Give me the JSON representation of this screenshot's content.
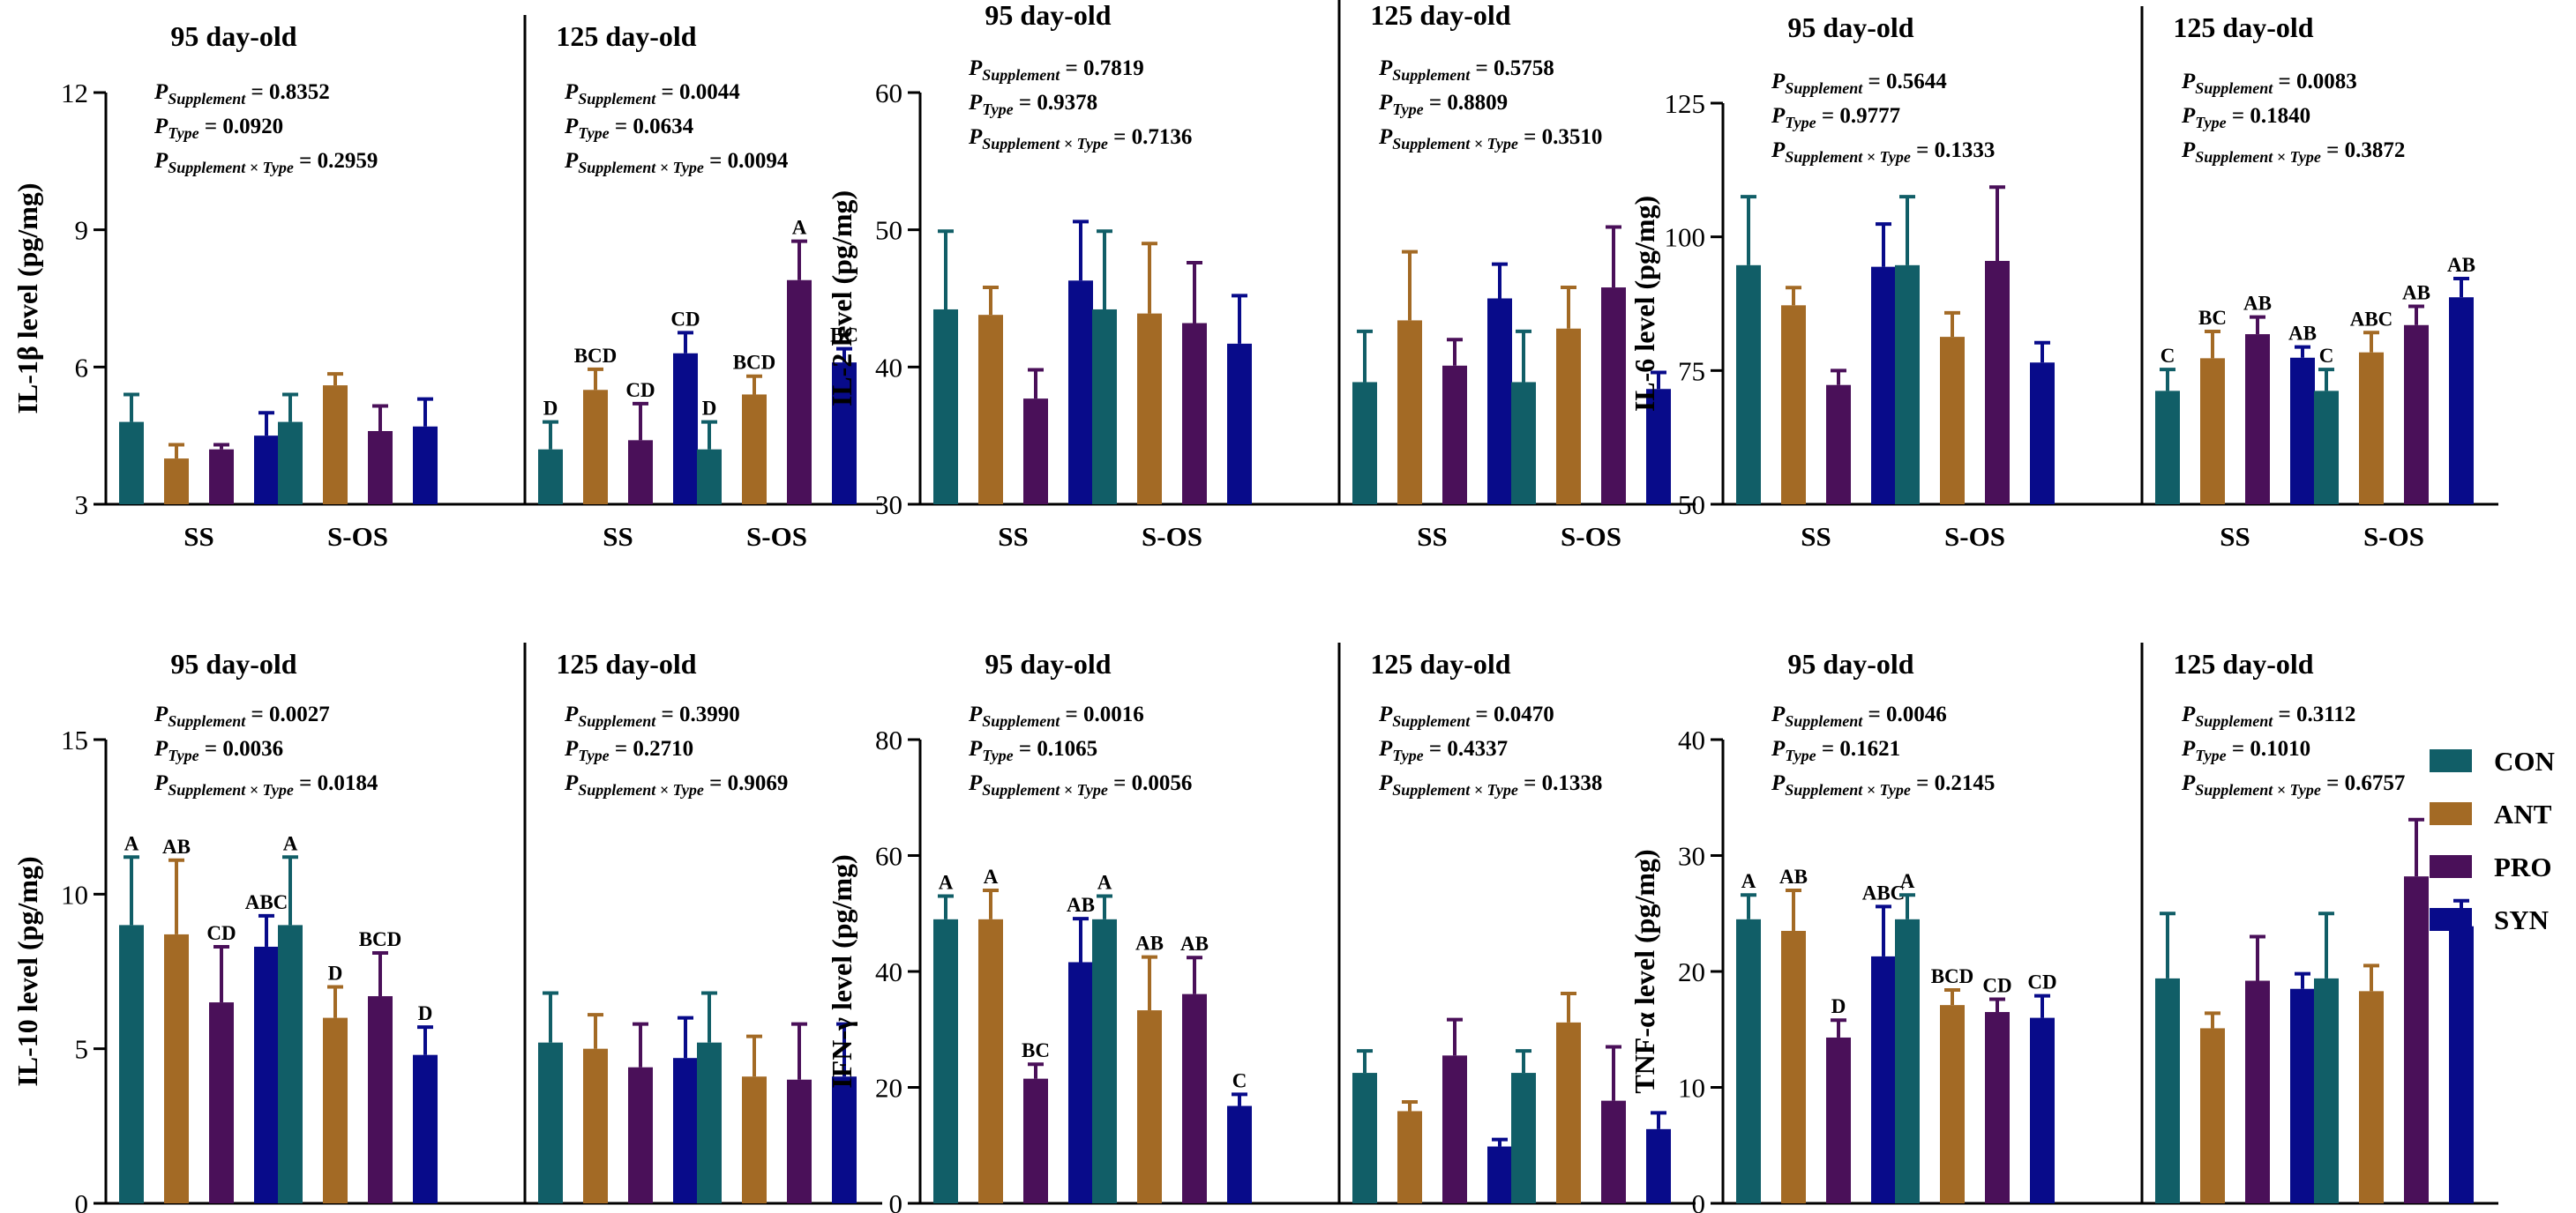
{
  "legend": {
    "items": [
      {
        "label": "CON",
        "color": "#115e67"
      },
      {
        "label": "ANT",
        "color": "#a36a25"
      },
      {
        "label": "PRO",
        "color": "#4a1059"
      },
      {
        "label": "SYN",
        "color": "#080b8a"
      }
    ]
  },
  "chart_data": [
    {
      "type": "bar",
      "title": "IL-1β",
      "ylabel": "IL-1β level (pg/mg)",
      "ylim": [
        3,
        12
      ],
      "yticks": [
        3,
        6,
        9,
        12
      ],
      "categories": [
        "SS",
        "S-OS",
        "SS",
        "S-OS"
      ],
      "groups": [
        "95 day-old",
        "125 day-old"
      ],
      "series": [
        {
          "name": "CON",
          "values": [
            4.8,
            4.8,
            4.2,
            4.2
          ],
          "err": [
            0.6,
            0.6,
            0.6,
            0.6
          ]
        },
        {
          "name": "ANT",
          "values": [
            4.0,
            5.6,
            5.5,
            5.4
          ],
          "err": [
            0.3,
            0.25,
            0.45,
            0.4
          ]
        },
        {
          "name": "PRO",
          "values": [
            4.2,
            4.6,
            4.4,
            7.9
          ],
          "err": [
            0.1,
            0.55,
            0.8,
            0.85
          ]
        },
        {
          "name": "SYN",
          "values": [
            4.5,
            4.7,
            6.3,
            6.1
          ],
          "err": [
            0.5,
            0.6,
            0.45,
            0.3
          ]
        }
      ],
      "letters": {
        "95 day-old": null,
        "125 day-old": [
          [
            "D",
            "BCD",
            "CD",
            "CD"
          ],
          [
            "D",
            "BCD",
            "A",
            "BC"
          ]
        ]
      },
      "stats": [
        {
          "supp": "= 0.8352",
          "type": "= 0.0920",
          "inter": "= 0.2959"
        },
        {
          "supp": "= 0.0044",
          "type": "= 0.0634",
          "inter": "= 0.0094"
        }
      ]
    },
    {
      "type": "bar",
      "title": "IL-2",
      "ylabel": "IL-2 level (pg/mg)",
      "ylim": [
        30,
        60
      ],
      "yticks": [
        30,
        40,
        50,
        60
      ],
      "categories": [
        "SS",
        "S-OS",
        "SS",
        "S-OS"
      ],
      "groups": [
        "95 day-old",
        "125 day-old"
      ],
      "series": [
        {
          "name": "CON",
          "values": [
            44.2,
            44.2,
            38.9,
            38.9
          ],
          "err": [
            5.7,
            5.7,
            3.7,
            3.7
          ]
        },
        {
          "name": "ANT",
          "values": [
            43.8,
            43.9,
            43.4,
            42.8
          ],
          "err": [
            2.0,
            5.1,
            5.0,
            3.0
          ]
        },
        {
          "name": "PRO",
          "values": [
            37.7,
            43.2,
            40.1,
            45.8
          ],
          "err": [
            2.1,
            4.4,
            1.9,
            4.4
          ]
        },
        {
          "name": "SYN",
          "values": [
            46.3,
            41.7,
            45.0,
            38.4
          ],
          "err": [
            4.3,
            3.5,
            2.5,
            1.2
          ]
        }
      ],
      "letters": {
        "95 day-old": null,
        "125 day-old": null
      },
      "stats": [
        {
          "supp": "= 0.7819",
          "type": "= 0.9378",
          "inter": "= 0.7136"
        },
        {
          "supp": "= 0.5758",
          "type": "= 0.8809",
          "inter": "= 0.3510"
        }
      ]
    },
    {
      "type": "bar",
      "title": "IL-6",
      "ylabel": "IL-6 level (pg/mg)",
      "ylim": [
        50,
        125
      ],
      "yticks": [
        50,
        75,
        100,
        125
      ],
      "categories": [
        "SS",
        "S-OS",
        "SS",
        "S-OS"
      ],
      "groups": [
        "95 day-old",
        "125 day-old"
      ],
      "series": [
        {
          "name": "CON",
          "values": [
            94.7,
            94.7,
            71.2,
            71.2
          ],
          "err": [
            12.8,
            12.8,
            4.0,
            4.0
          ]
        },
        {
          "name": "ANT",
          "values": [
            87.2,
            81.3,
            77.3,
            78.4
          ],
          "err": [
            3.3,
            4.5,
            5.0,
            3.7
          ]
        },
        {
          "name": "PRO",
          "values": [
            72.3,
            95.5,
            81.8,
            83.5
          ],
          "err": [
            2.7,
            13.8,
            3.2,
            3.5
          ]
        },
        {
          "name": "SYN",
          "values": [
            94.4,
            76.5,
            77.4,
            88.7
          ],
          "err": [
            8.0,
            3.7,
            2.0,
            3.5
          ]
        }
      ],
      "letters": {
        "95 day-old": null,
        "125 day-old": [
          [
            "C",
            "BC",
            "AB",
            "AB"
          ],
          [
            "C",
            "ABC",
            "AB",
            "AB"
          ]
        ]
      },
      "stats": [
        {
          "supp": "= 0.5644",
          "type": "= 0.9777",
          "inter": "= 0.1333"
        },
        {
          "supp": "= 0.0083",
          "type": "= 0.1840",
          "inter": "= 0.3872"
        }
      ]
    },
    {
      "type": "bar",
      "title": "IL-10",
      "ylabel": "IL-10 level (pg/mg)",
      "ylim": [
        0,
        15
      ],
      "yticks": [
        0,
        5,
        10,
        15
      ],
      "categories": [
        "SS",
        "S-OS",
        "SS",
        "S-OS"
      ],
      "groups": [
        "95 day-old",
        "125 day-old"
      ],
      "series": [
        {
          "name": "CON",
          "values": [
            9.0,
            9.0,
            5.2,
            5.2
          ],
          "err": [
            2.2,
            2.2,
            1.6,
            1.6
          ]
        },
        {
          "name": "ANT",
          "values": [
            8.7,
            6.0,
            5.0,
            4.1
          ],
          "err": [
            2.4,
            1.0,
            1.1,
            1.3
          ]
        },
        {
          "name": "PRO",
          "values": [
            6.5,
            6.7,
            4.4,
            4.0
          ],
          "err": [
            1.8,
            1.4,
            1.4,
            1.8
          ]
        },
        {
          "name": "SYN",
          "values": [
            8.3,
            4.8,
            4.7,
            4.1
          ],
          "err": [
            1.0,
            0.9,
            1.3,
            1.7
          ]
        }
      ],
      "letters": {
        "95 day-old": [
          [
            "A",
            "AB",
            "CD",
            "ABC"
          ],
          [
            "A",
            "D",
            "BCD",
            "D"
          ]
        ],
        "125 day-old": null
      },
      "stats": [
        {
          "supp": "= 0.0027",
          "type": "= 0.0036",
          "inter": "= 0.0184"
        },
        {
          "supp": "= 0.3990",
          "type": "= 0.2710",
          "inter": "= 0.9069"
        }
      ]
    },
    {
      "type": "bar",
      "title": "IFN-γ",
      "ylabel": "IFN-γ level (pg/mg)",
      "ylim": [
        0,
        80
      ],
      "yticks": [
        0,
        20,
        40,
        60,
        80
      ],
      "categories": [
        "SS",
        "S-OS",
        "SS",
        "S-OS"
      ],
      "groups": [
        "95 day-old",
        "125 day-old"
      ],
      "series": [
        {
          "name": "CON",
          "values": [
            49.0,
            49.0,
            22.5,
            22.5
          ],
          "err": [
            4.0,
            4.0,
            3.8,
            3.8
          ]
        },
        {
          "name": "ANT",
          "values": [
            49.0,
            33.3,
            15.9,
            31.2
          ],
          "err": [
            5.0,
            9.2,
            1.6,
            5.0
          ]
        },
        {
          "name": "PRO",
          "values": [
            21.5,
            36.1,
            25.5,
            17.7
          ],
          "err": [
            2.5,
            6.3,
            6.2,
            9.3
          ]
        },
        {
          "name": "SYN",
          "values": [
            41.6,
            16.8,
            9.8,
            12.8
          ],
          "err": [
            7.5,
            2.0,
            1.2,
            2.8
          ]
        }
      ],
      "letters": {
        "95 day-old": [
          [
            "A",
            "A",
            "BC",
            "AB"
          ],
          [
            "A",
            "AB",
            "AB",
            "C"
          ]
        ],
        "125 day-old": null
      },
      "stats": [
        {
          "supp": "= 0.0016",
          "type": "= 0.1065",
          "inter": "= 0.0056"
        },
        {
          "supp": "= 0.0470",
          "type": "= 0.4337",
          "inter": "= 0.1338"
        }
      ]
    },
    {
      "type": "bar",
      "title": "TNF-α",
      "ylabel": "TNF-α level (pg/mg)",
      "ylim": [
        0,
        40
      ],
      "yticks": [
        0,
        10,
        20,
        30,
        40
      ],
      "categories": [
        "SS",
        "S-OS",
        "SS",
        "S-OS"
      ],
      "groups": [
        "95 day-old",
        "125 day-old"
      ],
      "series": [
        {
          "name": "CON",
          "values": [
            24.5,
            24.5,
            19.4,
            19.4
          ],
          "err": [
            2.1,
            2.1,
            5.6,
            5.6
          ]
        },
        {
          "name": "ANT",
          "values": [
            23.5,
            17.1,
            15.1,
            18.3
          ],
          "err": [
            3.5,
            1.3,
            1.3,
            2.2
          ]
        },
        {
          "name": "PRO",
          "values": [
            14.3,
            16.5,
            19.2,
            28.2
          ],
          "err": [
            1.5,
            1.1,
            3.8,
            4.9
          ]
        },
        {
          "name": "SYN",
          "values": [
            21.3,
            16.0,
            18.5,
            23.9
          ],
          "err": [
            4.3,
            1.9,
            1.3,
            2.2
          ]
        }
      ],
      "letters": {
        "95 day-old": [
          [
            "A",
            "AB",
            "D",
            "ABC"
          ],
          [
            "A",
            "BCD",
            "CD",
            "CD"
          ]
        ],
        "125 day-old": null
      },
      "stats": [
        {
          "supp": "= 0.0046",
          "type": "= 0.1621",
          "inter": "= 0.2145"
        },
        {
          "supp": "= 0.3112",
          "type": "= 0.1010",
          "inter": "= 0.6757"
        }
      ]
    }
  ]
}
